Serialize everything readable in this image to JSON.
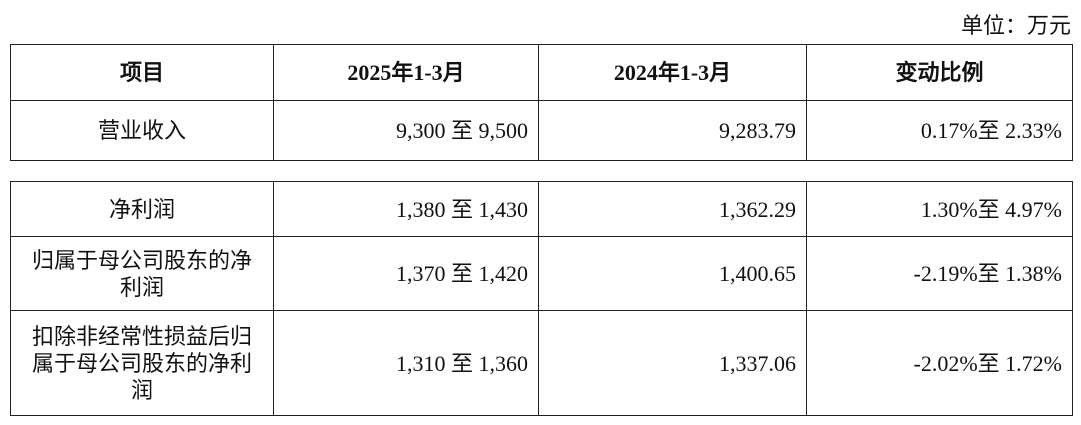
{
  "unit_label": "单位：万元",
  "headers": [
    "项目",
    "2025年1-3月",
    "2024年1-3月",
    "变动比例"
  ],
  "table1": [
    {
      "item": "营业收入",
      "y2025": "9,300 至 9,500",
      "y2024": "9,283.79",
      "change": "0.17%至 2.33%"
    }
  ],
  "table2": [
    {
      "item": "净利润",
      "y2025": "1,380 至 1,430",
      "y2024": "1,362.29",
      "change": "1.30%至 4.97%"
    },
    {
      "item": "归属于母公司股东的净利润",
      "y2025": "1,370 至 1,420",
      "y2024": "1,400.65",
      "change": "-2.19%至 1.38%"
    },
    {
      "item": "扣除非经常性损益后归属于母公司股东的净利润",
      "y2025": "1,310 至 1,360",
      "y2024": "1,337.06",
      "change": "-2.02%至 1.72%"
    }
  ]
}
